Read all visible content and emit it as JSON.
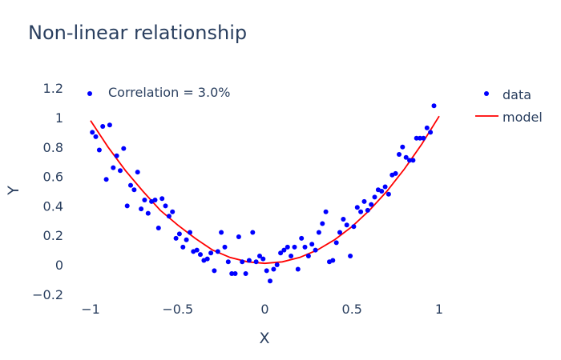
{
  "chart_data": {
    "type": "scatter",
    "title": "Non-linear relationship",
    "xlabel": "X",
    "ylabel": "Y",
    "xlim": [
      -1.1,
      1.1
    ],
    "ylim": [
      -0.2,
      1.2
    ],
    "xticks": [
      -1,
      -0.5,
      0,
      0.5,
      1
    ],
    "xtick_labels": [
      "−1",
      "−0.5",
      "0",
      "0.5",
      "1"
    ],
    "yticks": [
      -0.2,
      0,
      0.2,
      0.4,
      0.6,
      0.8,
      1,
      1.2
    ],
    "ytick_labels": [
      "−0.2",
      "0",
      "0.2",
      "0.4",
      "0.6",
      "0.8",
      "1",
      "1.2"
    ],
    "grid": false,
    "legend_position": "top-right",
    "annotation": "Correlation = 3.0%",
    "series": [
      {
        "name": "data",
        "mode": "markers",
        "color": "#0000ff",
        "points": [
          [
            -0.99,
            0.9
          ],
          [
            -0.97,
            0.87
          ],
          [
            -0.95,
            0.78
          ],
          [
            -0.93,
            0.94
          ],
          [
            -0.91,
            0.58
          ],
          [
            -0.89,
            0.95
          ],
          [
            -0.87,
            0.66
          ],
          [
            -0.85,
            0.74
          ],
          [
            -0.83,
            0.64
          ],
          [
            -0.81,
            0.79
          ],
          [
            -0.79,
            0.4
          ],
          [
            -0.77,
            0.54
          ],
          [
            -0.75,
            0.51
          ],
          [
            -0.73,
            0.63
          ],
          [
            -0.71,
            0.38
          ],
          [
            -0.69,
            0.44
          ],
          [
            -0.67,
            0.35
          ],
          [
            -0.65,
            0.43
          ],
          [
            -0.63,
            0.44
          ],
          [
            -0.61,
            0.25
          ],
          [
            -0.59,
            0.45
          ],
          [
            -0.57,
            0.4
          ],
          [
            -0.55,
            0.33
          ],
          [
            -0.53,
            0.36
          ],
          [
            -0.51,
            0.18
          ],
          [
            -0.49,
            0.21
          ],
          [
            -0.47,
            0.12
          ],
          [
            -0.45,
            0.17
          ],
          [
            -0.43,
            0.22
          ],
          [
            -0.41,
            0.09
          ],
          [
            -0.39,
            0.1
          ],
          [
            -0.37,
            0.07
          ],
          [
            -0.35,
            0.03
          ],
          [
            -0.33,
            0.04
          ],
          [
            -0.31,
            0.08
          ],
          [
            -0.29,
            -0.04
          ],
          [
            -0.27,
            0.09
          ],
          [
            -0.25,
            0.22
          ],
          [
            -0.23,
            0.12
          ],
          [
            -0.21,
            0.02
          ],
          [
            -0.19,
            -0.06
          ],
          [
            -0.17,
            -0.06
          ],
          [
            -0.15,
            0.19
          ],
          [
            -0.13,
            0.02
          ],
          [
            -0.11,
            -0.06
          ],
          [
            -0.09,
            0.03
          ],
          [
            -0.07,
            0.22
          ],
          [
            -0.05,
            0.02
          ],
          [
            -0.03,
            0.06
          ],
          [
            -0.01,
            0.04
          ],
          [
            0.01,
            -0.04
          ],
          [
            0.03,
            -0.11
          ],
          [
            0.05,
            -0.03
          ],
          [
            0.07,
            0.0
          ],
          [
            0.09,
            0.08
          ],
          [
            0.11,
            0.1
          ],
          [
            0.13,
            0.12
          ],
          [
            0.15,
            0.06
          ],
          [
            0.17,
            0.12
          ],
          [
            0.19,
            -0.03
          ],
          [
            0.21,
            0.18
          ],
          [
            0.23,
            0.12
          ],
          [
            0.25,
            0.06
          ],
          [
            0.27,
            0.14
          ],
          [
            0.29,
            0.1
          ],
          [
            0.31,
            0.22
          ],
          [
            0.33,
            0.28
          ],
          [
            0.35,
            0.36
          ],
          [
            0.37,
            0.02
          ],
          [
            0.39,
            0.03
          ],
          [
            0.41,
            0.15
          ],
          [
            0.43,
            0.22
          ],
          [
            0.45,
            0.31
          ],
          [
            0.47,
            0.27
          ],
          [
            0.49,
            0.06
          ],
          [
            0.51,
            0.26
          ],
          [
            0.53,
            0.39
          ],
          [
            0.55,
            0.36
          ],
          [
            0.57,
            0.43
          ],
          [
            0.59,
            0.37
          ],
          [
            0.61,
            0.41
          ],
          [
            0.63,
            0.46
          ],
          [
            0.65,
            0.51
          ],
          [
            0.67,
            0.5
          ],
          [
            0.69,
            0.53
          ],
          [
            0.71,
            0.48
          ],
          [
            0.73,
            0.61
          ],
          [
            0.75,
            0.62
          ],
          [
            0.77,
            0.75
          ],
          [
            0.79,
            0.8
          ],
          [
            0.81,
            0.73
          ],
          [
            0.83,
            0.71
          ],
          [
            0.85,
            0.71
          ],
          [
            0.87,
            0.86
          ],
          [
            0.89,
            0.86
          ],
          [
            0.91,
            0.86
          ],
          [
            0.93,
            0.93
          ],
          [
            0.95,
            0.9
          ],
          [
            0.97,
            1.08
          ]
        ]
      },
      {
        "name": "model",
        "mode": "lines",
        "color": "#ff0000",
        "points": [
          [
            -1.0,
            0.98
          ],
          [
            -0.9,
            0.8
          ],
          [
            -0.8,
            0.64
          ],
          [
            -0.7,
            0.5
          ],
          [
            -0.6,
            0.37
          ],
          [
            -0.5,
            0.27
          ],
          [
            -0.4,
            0.18
          ],
          [
            -0.3,
            0.1
          ],
          [
            -0.2,
            0.05
          ],
          [
            -0.1,
            0.02
          ],
          [
            0.0,
            0.01
          ],
          [
            0.1,
            0.02
          ],
          [
            0.2,
            0.05
          ],
          [
            0.3,
            0.1
          ],
          [
            0.4,
            0.17
          ],
          [
            0.5,
            0.26
          ],
          [
            0.6,
            0.37
          ],
          [
            0.7,
            0.5
          ],
          [
            0.8,
            0.65
          ],
          [
            0.9,
            0.82
          ],
          [
            1.0,
            1.01
          ]
        ]
      }
    ]
  }
}
